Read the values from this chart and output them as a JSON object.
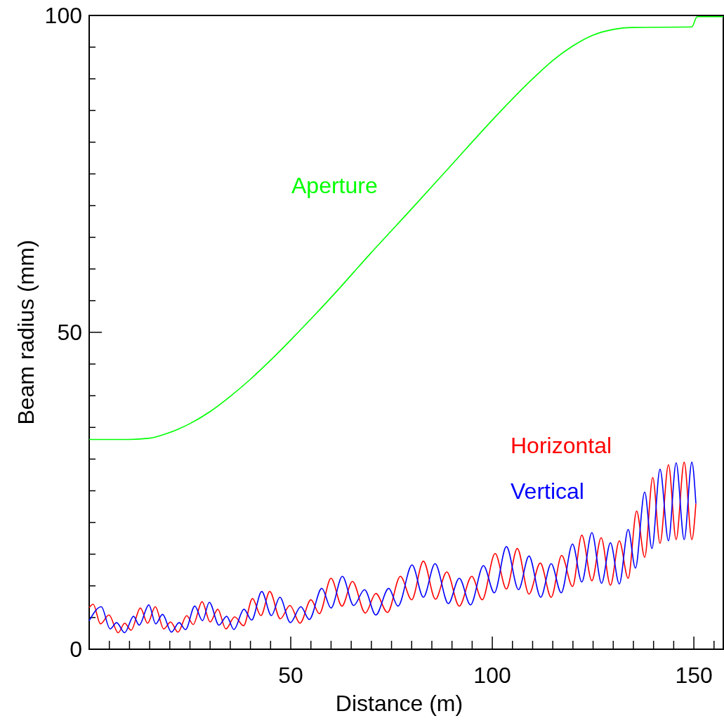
{
  "chart_data": {
    "type": "line",
    "xlabel": "Distance (m)",
    "ylabel": "Beam radius (mm)",
    "xlim": [
      0,
      157.3
    ],
    "ylim": [
      0,
      100
    ],
    "xticks": [
      {
        "value": 5,
        "label": null
      },
      {
        "value": 10,
        "label": null
      },
      {
        "value": 15,
        "label": null
      },
      {
        "value": 20,
        "label": null
      },
      {
        "value": 25,
        "label": null
      },
      {
        "value": 30,
        "label": null
      },
      {
        "value": 35,
        "label": null
      },
      {
        "value": 40,
        "label": null
      },
      {
        "value": 45,
        "label": null
      },
      50,
      {
        "value": 55,
        "label": null
      },
      {
        "value": 60,
        "label": null
      },
      {
        "value": 65,
        "label": null
      },
      {
        "value": 70,
        "label": null
      },
      {
        "value": 75,
        "label": null
      },
      {
        "value": 80,
        "label": null
      },
      {
        "value": 85,
        "label": null
      },
      {
        "value": 90,
        "label": null
      },
      {
        "value": 95,
        "label": null
      },
      100,
      {
        "value": 105,
        "label": null
      },
      {
        "value": 110,
        "label": null
      },
      {
        "value": 115,
        "label": null
      },
      {
        "value": 120,
        "label": null
      },
      {
        "value": 125,
        "label": null
      },
      {
        "value": 130,
        "label": null
      },
      {
        "value": 135,
        "label": null
      },
      {
        "value": 140,
        "label": null
      },
      {
        "value": 145,
        "label": null
      },
      150,
      {
        "value": 155,
        "label": null
      }
    ],
    "yticks": [
      0,
      {
        "value": 5,
        "label": null
      },
      {
        "value": 10,
        "label": null
      },
      {
        "value": 15,
        "label": null
      },
      {
        "value": 20,
        "label": null
      },
      {
        "value": 25,
        "label": null
      },
      {
        "value": 30,
        "label": null
      },
      {
        "value": 35,
        "label": null
      },
      {
        "value": 40,
        "label": null
      },
      {
        "value": 45,
        "label": null
      },
      50,
      {
        "value": 55,
        "label": null
      },
      {
        "value": 60,
        "label": null
      },
      {
        "value": 65,
        "label": null
      },
      {
        "value": 70,
        "label": null
      },
      {
        "value": 75,
        "label": null
      },
      {
        "value": 80,
        "label": null
      },
      {
        "value": 85,
        "label": null
      },
      {
        "value": 90,
        "label": null
      },
      {
        "value": 95,
        "label": null
      },
      100
    ],
    "grid": false,
    "marker": "none",
    "line_style": "solid",
    "series": [
      {
        "name": "Aperture",
        "color": "#00ff00",
        "x": [
          0,
          10,
          15,
          20,
          25,
          30,
          35,
          40,
          45,
          50,
          55,
          60,
          70,
          80,
          90,
          100,
          110,
          115,
          120,
          125,
          130,
          135,
          149.5,
          150.8,
          157.3
        ],
        "values": [
          33.1,
          33.1,
          33.3,
          34.2,
          35.6,
          37.5,
          39.9,
          42.6,
          45.6,
          48.8,
          52.1,
          55.5,
          62.6,
          69.5,
          76.5,
          83.5,
          90.0,
          92.9,
          95.2,
          96.9,
          97.8,
          98.1,
          98.2,
          99.8,
          99.8
        ]
      },
      {
        "name": "Horizontal",
        "color": "#ff0000",
        "x": [
          0,
          1.0,
          2.8,
          4.9,
          7.2,
          8.8,
          10.4,
          12.7,
          14.5,
          16.4,
          18.5,
          20.2,
          22.0,
          24.2,
          25.8,
          28.0,
          30.0,
          31.9,
          33.9,
          36.1,
          38.3,
          40.5,
          42.6,
          44.8,
          47.4,
          49.8,
          52.3,
          55.0,
          57.1,
          60.0,
          62.7,
          65.3,
          68.5,
          71.1,
          74.0,
          77.2,
          80.0,
          82.9,
          85.9,
          88.7,
          91.8,
          94.9,
          97.5,
          100.7,
          103.5,
          106.2,
          109.1,
          111.9,
          114.6,
          117.2,
          119.9,
          122.2,
          124.7,
          127.0,
          129.3,
          131.5,
          133.7,
          135.8,
          137.8,
          139.8,
          141.6,
          143.7,
          145.6,
          147.6,
          149.5,
          150.5
        ],
        "values": [
          6.6,
          7.1,
          4.0,
          5.4,
          2.6,
          4.1,
          3.0,
          6.5,
          4.1,
          6.7,
          3.2,
          4.3,
          2.7,
          5.3,
          3.9,
          7.5,
          4.3,
          6.3,
          3.2,
          5.1,
          3.7,
          8.0,
          5.3,
          9.1,
          4.8,
          6.9,
          4.1,
          7.8,
          5.6,
          11.2,
          6.8,
          10.7,
          5.7,
          8.8,
          5.8,
          11.5,
          7.8,
          13.9,
          7.9,
          12.2,
          6.8,
          11.5,
          7.8,
          15.1,
          9.5,
          15.9,
          8.7,
          13.6,
          8.2,
          14.8,
          9.9,
          18.0,
          10.8,
          17.6,
          10.1,
          17.1,
          11.2,
          21.8,
          14.5,
          27.1,
          16.7,
          29.1,
          17.3,
          29.5,
          17.3,
          23.0
        ]
      },
      {
        "name": "Vertical",
        "color": "#0000ff",
        "x": [
          0,
          3.0,
          5.2,
          6.8,
          8.8,
          11.0,
          12.4,
          14.8,
          16.5,
          18.2,
          20.4,
          22.3,
          23.9,
          26.2,
          28.1,
          29.8,
          32.2,
          34.1,
          35.9,
          38.4,
          40.3,
          42.8,
          45.2,
          47.3,
          49.9,
          52.5,
          54.6,
          57.7,
          60.0,
          62.8,
          65.6,
          68.3,
          71.1,
          74.3,
          76.6,
          80.1,
          82.9,
          85.8,
          89.1,
          91.8,
          94.6,
          97.8,
          100.5,
          103.5,
          106.5,
          109.1,
          112.0,
          114.6,
          117.1,
          119.9,
          122.2,
          124.7,
          127.1,
          129.3,
          131.5,
          133.7,
          135.5,
          137.8,
          139.6,
          141.6,
          143.7,
          145.6,
          147.6,
          149.5,
          150.5
        ],
        "values": [
          4.5,
          6.7,
          3.2,
          4.2,
          2.6,
          5.2,
          3.8,
          7.0,
          4.0,
          5.5,
          2.7,
          4.2,
          3.1,
          6.8,
          4.5,
          7.4,
          3.8,
          5.2,
          3.1,
          6.3,
          4.6,
          9.1,
          5.3,
          8.2,
          4.2,
          6.7,
          4.7,
          9.6,
          6.5,
          11.5,
          6.9,
          9.4,
          5.4,
          9.6,
          6.8,
          13.3,
          8.2,
          13.5,
          7.2,
          11.2,
          7.0,
          13.2,
          8.9,
          16.2,
          9.4,
          14.7,
          8.2,
          13.5,
          8.9,
          16.6,
          10.6,
          18.4,
          10.4,
          16.8,
          10.3,
          18.9,
          12.8,
          24.8,
          15.9,
          28.4,
          17.1,
          29.4,
          17.3,
          29.5,
          23.0
        ]
      }
    ]
  }
}
